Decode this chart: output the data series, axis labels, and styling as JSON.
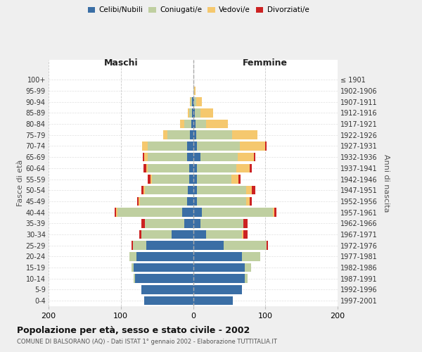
{
  "age_groups": [
    "0-4",
    "5-9",
    "10-14",
    "15-19",
    "20-24",
    "25-29",
    "30-34",
    "35-39",
    "40-44",
    "45-49",
    "50-54",
    "55-59",
    "60-64",
    "65-69",
    "70-74",
    "75-79",
    "80-84",
    "85-89",
    "90-94",
    "95-99",
    "100+"
  ],
  "birth_years": [
    "1997-2001",
    "1992-1996",
    "1987-1991",
    "1982-1986",
    "1977-1981",
    "1972-1976",
    "1967-1971",
    "1962-1966",
    "1957-1961",
    "1952-1956",
    "1947-1951",
    "1942-1946",
    "1937-1941",
    "1932-1936",
    "1927-1931",
    "1922-1926",
    "1917-1921",
    "1912-1916",
    "1907-1911",
    "1902-1906",
    "≤ 1901"
  ],
  "colors": {
    "celibi": "#3a6ea5",
    "coniugati": "#bfcfa0",
    "vedovi": "#f5c86e",
    "divorziati": "#cc2222"
  },
  "males": {
    "celibi": [
      68,
      72,
      80,
      82,
      78,
      65,
      30,
      12,
      15,
      8,
      7,
      5,
      5,
      8,
      8,
      4,
      2,
      1,
      1,
      0,
      0
    ],
    "coniugati": [
      0,
      0,
      2,
      3,
      10,
      18,
      42,
      55,
      90,
      65,
      60,
      52,
      58,
      55,
      55,
      32,
      10,
      4,
      2,
      0,
      0
    ],
    "vedovi": [
      0,
      0,
      0,
      0,
      0,
      0,
      0,
      0,
      2,
      2,
      2,
      2,
      2,
      5,
      8,
      5,
      6,
      2,
      1,
      0,
      0
    ],
    "divorziati": [
      0,
      0,
      0,
      0,
      0,
      2,
      2,
      5,
      2,
      2,
      3,
      4,
      4,
      2,
      0,
      0,
      0,
      0,
      0,
      0,
      0
    ]
  },
  "females": {
    "celibi": [
      55,
      68,
      72,
      72,
      68,
      42,
      18,
      10,
      12,
      5,
      5,
      5,
      5,
      10,
      5,
      4,
      3,
      2,
      1,
      0,
      0
    ],
    "coniugati": [
      0,
      0,
      3,
      8,
      25,
      60,
      50,
      60,
      98,
      68,
      68,
      48,
      55,
      52,
      60,
      50,
      15,
      8,
      3,
      1,
      0
    ],
    "vedovi": [
      0,
      0,
      0,
      0,
      0,
      0,
      2,
      0,
      2,
      5,
      8,
      10,
      18,
      22,
      35,
      35,
      30,
      18,
      8,
      2,
      0
    ],
    "divorziati": [
      0,
      0,
      0,
      0,
      0,
      2,
      5,
      5,
      3,
      3,
      5,
      3,
      3,
      2,
      2,
      0,
      0,
      0,
      0,
      0,
      0
    ]
  },
  "xlim": 200,
  "title": "Popolazione per età, sesso e stato civile - 2002",
  "subtitle": "COMUNE DI BALSORANO (AQ) - Dati ISTAT 1° gennaio 2002 - Elaborazione TUTTITALIA.IT",
  "xlabel_left": "Maschi",
  "xlabel_right": "Femmine",
  "ylabel_left": "Fasce di età",
  "ylabel_right": "Anni di nascita",
  "bg_color": "#efefef",
  "plot_bg": "#ffffff",
  "legend_labels": [
    "Celibi/Nubili",
    "Coniugati/e",
    "Vedovi/e",
    "Divorziati/e"
  ]
}
